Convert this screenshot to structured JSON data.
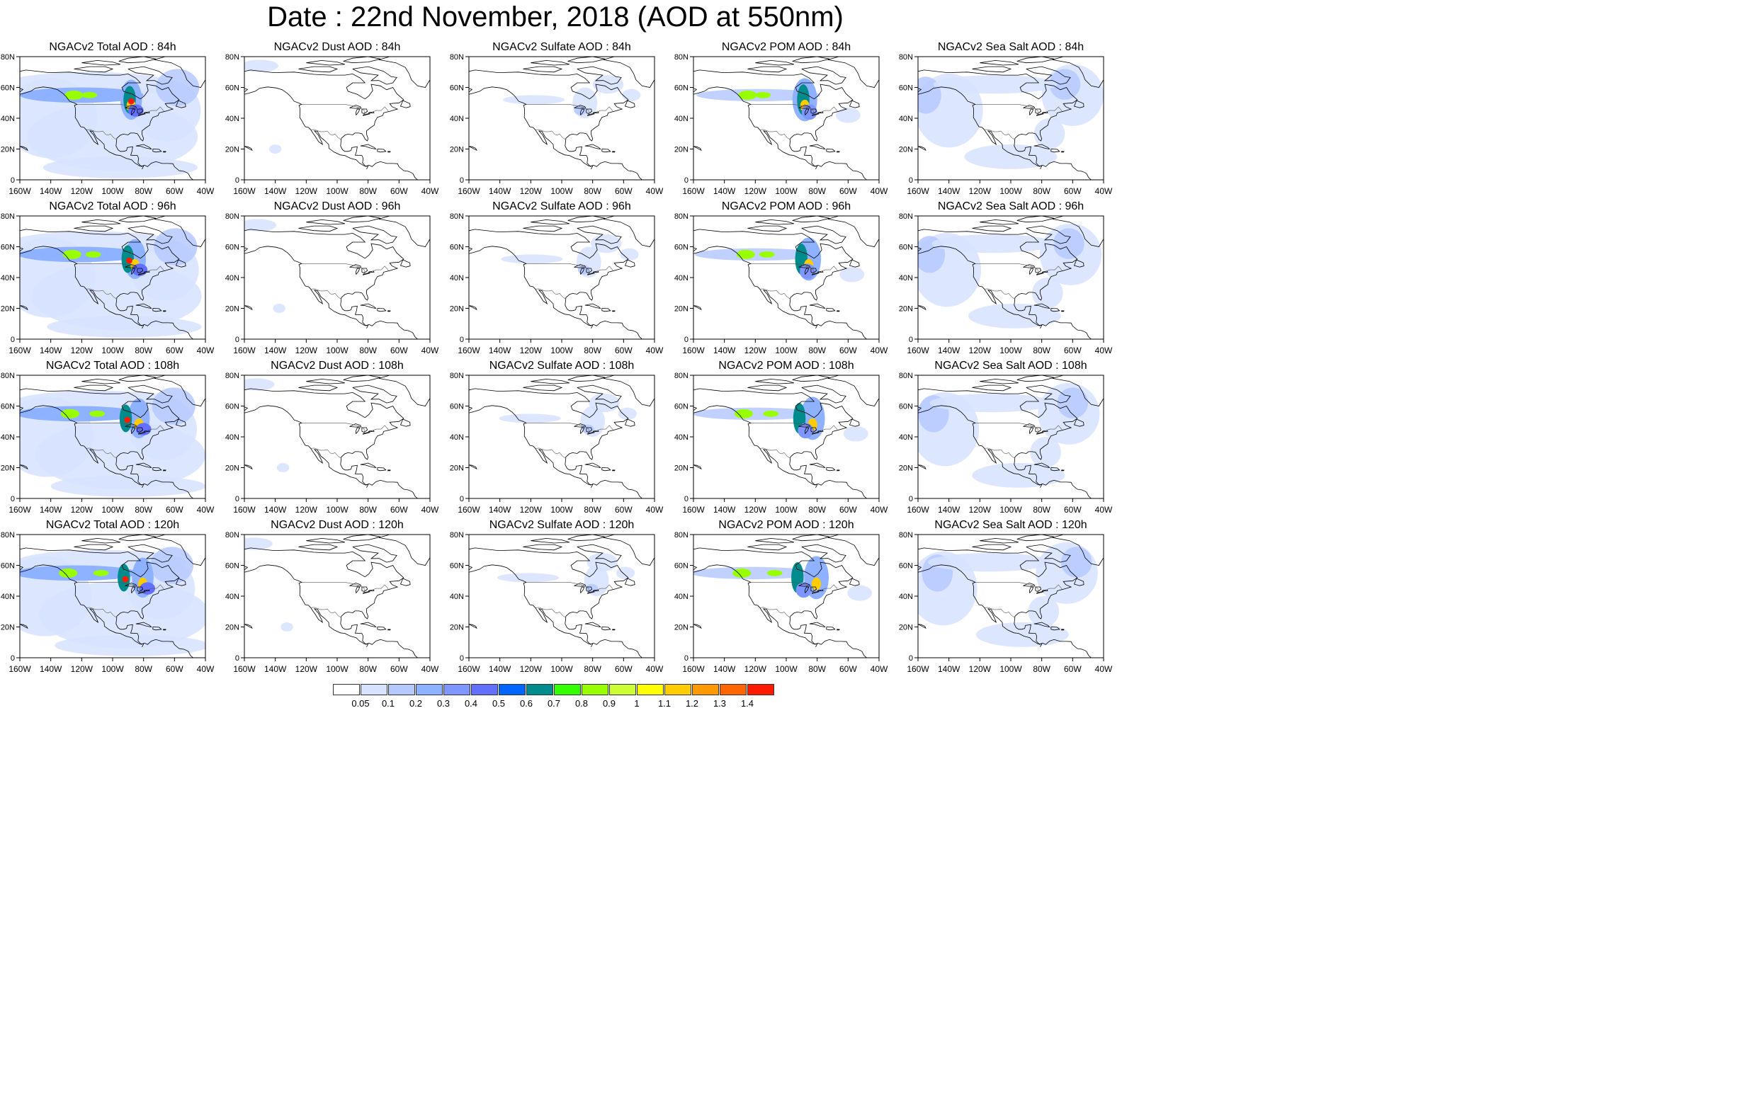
{
  "title": "Date : 22nd November, 2018 (AOD at 550nm)",
  "lon_ticks": [
    "160W",
    "140W",
    "120W",
    "100W",
    "80W",
    "60W",
    "40W"
  ],
  "lat_ticks": [
    "0",
    "20N",
    "40N",
    "60N",
    "80N"
  ],
  "species": [
    {
      "key": "total",
      "label": "Total AOD",
      "profile": "total"
    },
    {
      "key": "dust",
      "label": "Dust AOD",
      "profile": "dust"
    },
    {
      "key": "sulfate",
      "label": "Sulfate AOD",
      "profile": "sulfate"
    },
    {
      "key": "pom",
      "label": "POM AOD",
      "profile": "pom"
    },
    {
      "key": "seasalt",
      "label": "Sea Salt AOD",
      "profile": "seasalt"
    }
  ],
  "panel_titles": [
    [
      "NGACv2 Total AOD : 84h",
      "NGACv2 Dust AOD : 84h",
      "NGACv2 Sulfate AOD : 84h",
      "NGACv2 POM AOD : 84h",
      "NGACv2 Sea Salt AOD : 84h"
    ],
    [
      "NGACv2 Total AOD : 96h",
      "NGACv2 Dust AOD : 96h",
      "NGACv2 Sulfate AOD : 96h",
      "NGACv2 POM AOD : 96h",
      "NGACv2 Sea Salt AOD : 96h"
    ],
    [
      "NGACv2 Total AOD : 108h",
      "NGACv2 Dust AOD : 108h",
      "NGACv2 Sulfate AOD : 108h",
      "NGACv2 POM AOD : 108h",
      "NGACv2 Sea Salt AOD : 108h"
    ],
    [
      "NGACv2 Total AOD : 120h",
      "NGACv2 Dust AOD : 120h",
      "NGACv2 Sulfate AOD : 120h",
      "NGACv2 POM AOD : 120h",
      "NGACv2 Sea Salt  AOD : 120h"
    ]
  ],
  "colorbar": {
    "labels": [
      "0.05",
      "0.1",
      "0.2",
      "0.3",
      "0.4",
      "0.5",
      "0.6",
      "0.7",
      "0.8",
      "0.9",
      "1",
      "1.1",
      "1.2",
      "1.3",
      "1.4"
    ],
    "colors": [
      "#ffffff",
      "#d6e2ff",
      "#b5c9ff",
      "#8eb2ff",
      "#7f96ff",
      "#6370ff",
      "#0066ff",
      "#008c8c",
      "#33ff00",
      "#99ff00",
      "#ccff33",
      "#ffff00",
      "#ffcc00",
      "#ff9900",
      "#ff6600",
      "#ff1a00"
    ]
  },
  "map": {
    "extent": {
      "lon": [
        -160,
        -40
      ],
      "lat": [
        0,
        80
      ]
    }
  }
}
